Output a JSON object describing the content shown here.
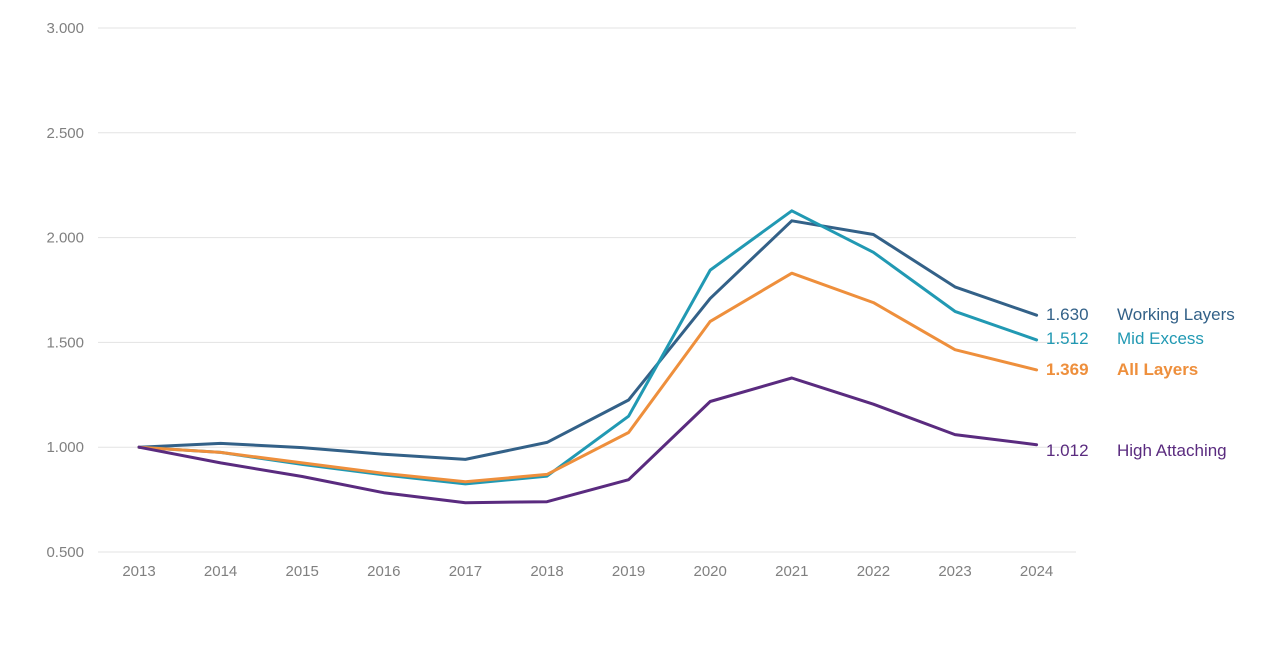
{
  "chart_data": {
    "type": "line",
    "title": "",
    "xlabel": "",
    "ylabel": "",
    "x": [
      "2013",
      "2014",
      "2015",
      "2016",
      "2017",
      "2018",
      "2019",
      "2020",
      "2021",
      "2022",
      "2023",
      "2024"
    ],
    "ylim": [
      0.5,
      3.0
    ],
    "yticks": [
      "0.500",
      "1.000",
      "1.500",
      "2.000",
      "2.500",
      "3.000"
    ],
    "grid": true,
    "legend": "direct labels at line ends (right)",
    "series": [
      {
        "name": "Working Layers",
        "end_label": "1.630",
        "color": "#336188",
        "bold": false,
        "values": [
          1.0,
          1.018,
          0.998,
          0.966,
          0.942,
          1.023,
          1.225,
          1.71,
          2.08,
          2.015,
          1.765,
          1.63
        ]
      },
      {
        "name": "Mid Excess",
        "end_label": "1.512",
        "color": "#2199B3",
        "bold": false,
        "values": [
          1.0,
          0.975,
          0.918,
          0.868,
          0.825,
          0.862,
          1.148,
          1.845,
          2.128,
          1.93,
          1.648,
          1.512
        ]
      },
      {
        "name": "All Layers",
        "end_label": "1.369",
        "color": "#EE8F3C",
        "bold": true,
        "values": [
          1.0,
          0.975,
          0.925,
          0.875,
          0.835,
          0.87,
          1.07,
          1.6,
          1.83,
          1.69,
          1.465,
          1.369
        ]
      },
      {
        "name": "High Attaching",
        "end_label": "1.012",
        "color": "#5A2B7F",
        "bold": false,
        "values": [
          1.0,
          0.925,
          0.86,
          0.783,
          0.735,
          0.74,
          0.845,
          1.218,
          1.33,
          1.205,
          1.06,
          1.012
        ]
      }
    ]
  }
}
